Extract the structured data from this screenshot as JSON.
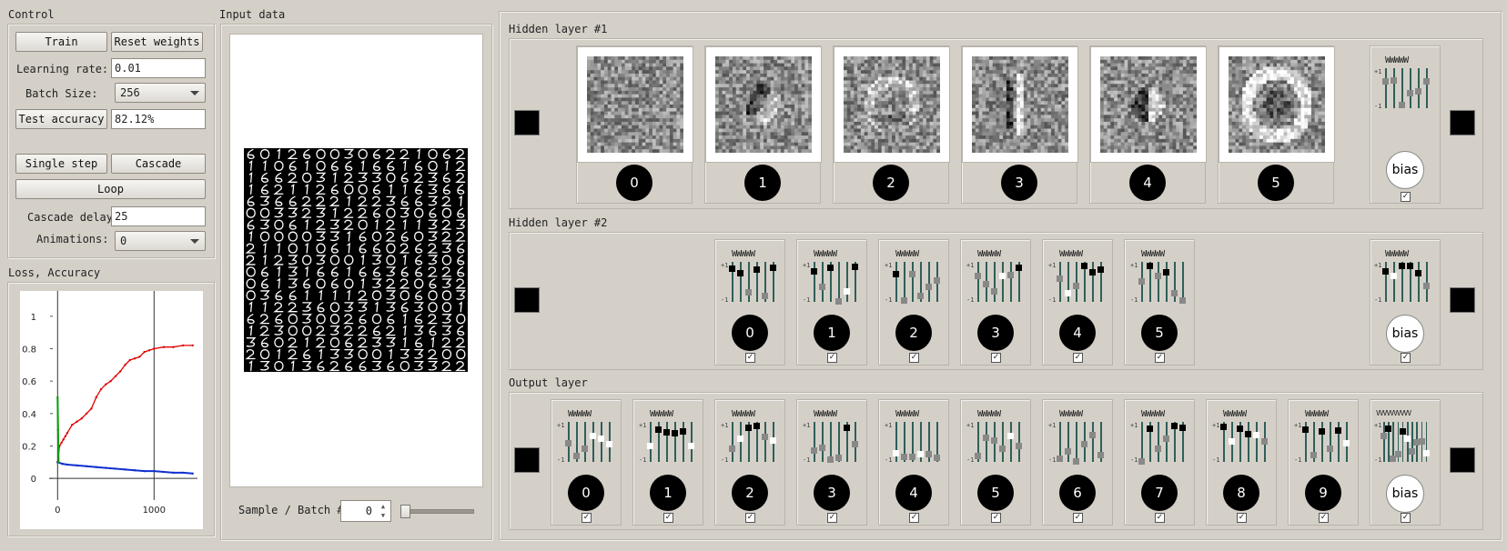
{
  "control": {
    "title": "Control",
    "train_label": "Train",
    "reset_label": "Reset weights",
    "lr_label": "Learning rate:",
    "lr_value": "0.01",
    "batch_label": "Batch Size:",
    "batch_value": "256",
    "test_label": "Test accuracy",
    "test_value": "82.12%",
    "step_label": "Single step",
    "cascade_label": "Cascade",
    "loop_label": "Loop",
    "delay_label": "Cascade delay",
    "delay_value": "25",
    "anim_label": "Animations:",
    "anim_value": "0"
  },
  "loss_panel": {
    "title": "Loss, Accuracy"
  },
  "chart_data": {
    "type": "line",
    "title": "",
    "xlabel": "",
    "ylabel": "",
    "xlim": [
      -50,
      1450
    ],
    "ylim": [
      -0.1,
      1.1
    ],
    "x_ticks": [
      "0",
      "1000"
    ],
    "y_ticks": [
      "0",
      "0.2",
      "0.4",
      "0.6",
      "0.8",
      "1"
    ],
    "series": [
      {
        "color": "#e00000",
        "x": [
          0,
          20,
          40,
          60,
          80,
          100,
          150,
          200,
          250,
          300,
          350,
          400,
          450,
          500,
          550,
          600,
          650,
          700,
          750,
          800,
          850,
          900,
          950,
          1000,
          1100,
          1200,
          1300,
          1400
        ],
        "y": [
          0.1,
          0.2,
          0.22,
          0.24,
          0.26,
          0.28,
          0.33,
          0.35,
          0.37,
          0.4,
          0.43,
          0.5,
          0.55,
          0.58,
          0.6,
          0.63,
          0.66,
          0.7,
          0.73,
          0.74,
          0.75,
          0.78,
          0.79,
          0.8,
          0.81,
          0.81,
          0.82,
          0.82
        ]
      },
      {
        "color": "#1030d0",
        "x": [
          0,
          50,
          100,
          200,
          300,
          400,
          500,
          600,
          700,
          800,
          900,
          1000,
          1100,
          1200,
          1300,
          1400
        ],
        "y": [
          0.1,
          0.09,
          0.085,
          0.08,
          0.075,
          0.07,
          0.065,
          0.06,
          0.055,
          0.05,
          0.045,
          0.045,
          0.04,
          0.035,
          0.035,
          0.03
        ]
      },
      {
        "color": "#00a000",
        "x": [
          0,
          5,
          10
        ],
        "y": [
          0.5,
          0.3,
          0.1
        ]
      }
    ]
  },
  "input_panel": {
    "title": "Input data",
    "sample_label": "Sample / Batch #",
    "sample_value": "0"
  },
  "hidden1": {
    "title": "Hidden layer #1",
    "neurons": [
      "0",
      "1",
      "2",
      "3",
      "4",
      "5"
    ],
    "bias_label": "bias",
    "w_header": "WWWWW"
  },
  "hidden2": {
    "title": "Hidden layer #2",
    "neurons": [
      "0",
      "1",
      "2",
      "3",
      "4",
      "5"
    ],
    "bias_label": "bias",
    "w_header": "WWWWW"
  },
  "output": {
    "title": "Output layer",
    "neurons": [
      "0",
      "1",
      "2",
      "3",
      "4",
      "5",
      "6",
      "7",
      "8",
      "9"
    ],
    "bias_label": "bias",
    "w_header": "WWWWW",
    "bias_w_header": "VVVVVVVVVV"
  },
  "slider_marks": {
    "plus": "+1",
    "minus": "-1"
  },
  "icons": {
    "check": "✓"
  }
}
